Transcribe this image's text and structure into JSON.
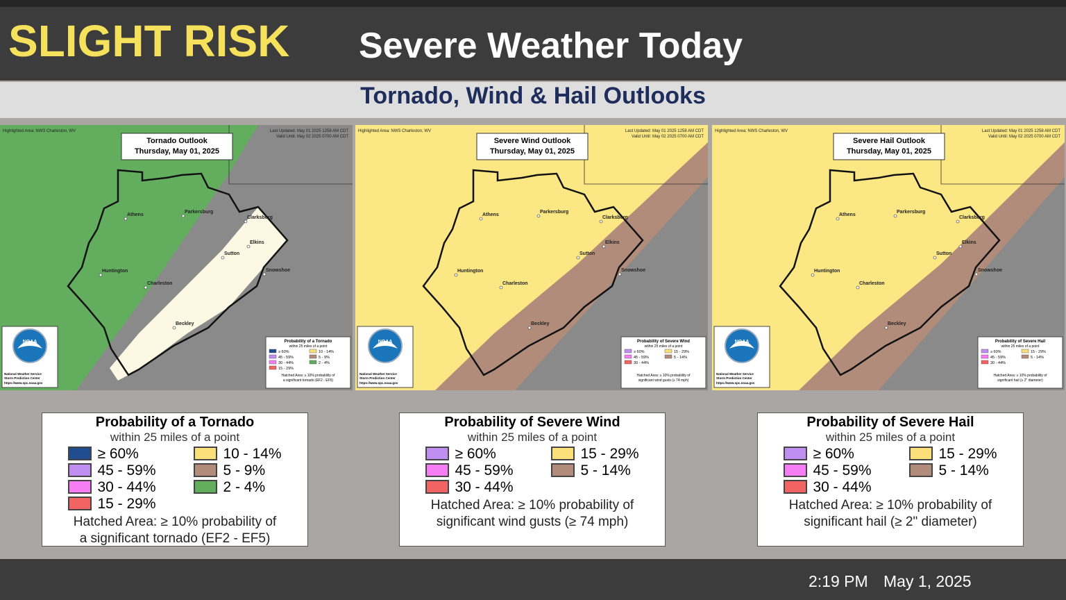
{
  "header": {
    "risk_level": "SLIGHT RISK",
    "title": "Severe Weather Today",
    "subtitle": "Tornado, Wind & Hail Outlooks"
  },
  "maps": [
    {
      "highlight": "Highlighted Area: NWS Charleston, WV",
      "title": "Tornado Outlook",
      "date": "Thursday, May 01, 2025",
      "updated": "Last Updated: May 01 2025 1258 AM CDT",
      "valid": "Valid Until: May 02 2025 0700 AM CDT"
    },
    {
      "highlight": "Highlighted Area: NWS Charleston, WV",
      "title": "Severe Wind Outlook",
      "date": "Thursday, May 01, 2025",
      "updated": "Last Updated: May 01 2025 1258 AM CDT",
      "valid": "Valid Until: May 02 2025 0700 AM CDT"
    },
    {
      "highlight": "Highlighted Area: NWS Charleston, WV",
      "title": "Severe Hail Outlook",
      "date": "Thursday, May 01, 2025",
      "updated": "Last Updated: May 01 2025 1258 AM CDT",
      "valid": "Valid Until: May 02 2025 0700 AM CDT"
    }
  ],
  "cities": [
    "Athens",
    "Parkersburg",
    "Clarksburg",
    "Elkins",
    "Sutton",
    "Huntington",
    "Charleston",
    "Snowshoe",
    "Beckley"
  ],
  "logo": {
    "mark": "NOAA",
    "line1": "National Weather Service",
    "line2": "Storm Prediction Center",
    "url": "https://www.spc.noaa.gov"
  },
  "legends": [
    {
      "title": "Probability of a Tornado",
      "subtitle": "within 25 miles of a point",
      "items": [
        {
          "label": "≥ 60%",
          "color": "#1f4d8f"
        },
        {
          "label": "45 - 59%",
          "color": "#c08ef0"
        },
        {
          "label": "30 - 44%",
          "color": "#f77df5"
        },
        {
          "label": "15 - 29%",
          "color": "#f26464"
        },
        {
          "label": "10 - 14%",
          "color": "#fbe07a"
        },
        {
          "label": "5 - 9%",
          "color": "#b28c7a"
        },
        {
          "label": "2 - 4%",
          "color": "#62ad5e"
        }
      ],
      "hatched": [
        "Hatched Area: ≥ 10% probability of",
        "a significant tornado (EF2 - EF5)"
      ]
    },
    {
      "title": "Probability of Severe Wind",
      "subtitle": "within 25 miles of a point",
      "items": [
        {
          "label": "≥ 60%",
          "color": "#c08ef0"
        },
        {
          "label": "45 - 59%",
          "color": "#f77df5"
        },
        {
          "label": "30 - 44%",
          "color": "#f26464"
        },
        {
          "label": "15 - 29%",
          "color": "#fbe07a"
        },
        {
          "label": "5 - 14%",
          "color": "#b28c7a"
        }
      ],
      "hatched": [
        "Hatched Area: ≥ 10% probability of",
        "significant wind gusts (≥ 74 mph)"
      ]
    },
    {
      "title": "Probability of Severe Hail",
      "subtitle": "within 25 miles of a point",
      "items": [
        {
          "label": "≥ 60%",
          "color": "#c08ef0"
        },
        {
          "label": "45 - 59%",
          "color": "#f77df5"
        },
        {
          "label": "30 - 44%",
          "color": "#f26464"
        },
        {
          "label": "15 - 29%",
          "color": "#fbe07a"
        },
        {
          "label": "5 - 14%",
          "color": "#b28c7a"
        }
      ],
      "hatched": [
        "Hatched Area: ≥ 10% probability of",
        "significant hail (≥ 2\" diameter)"
      ]
    }
  ],
  "footer": {
    "time": "2:19 PM",
    "date": "May 1, 2025"
  }
}
